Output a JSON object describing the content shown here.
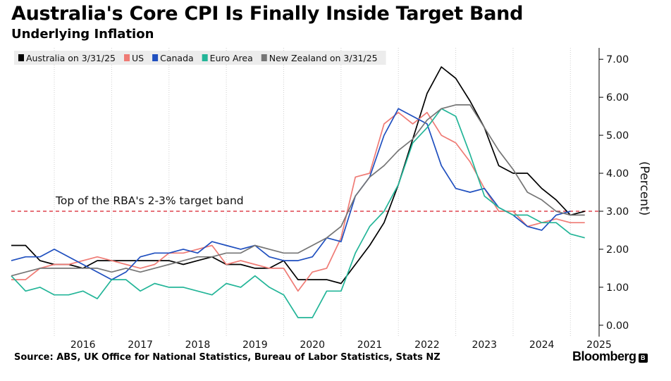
{
  "title": "Australia's Core CPI Is Finally Inside Target Band",
  "subtitle": "Underlying Inflation",
  "source": "Source: ABS, UK Office for National Statistics, Bureau of Labor Statistics, Stats NZ",
  "brand": "Bloomberg",
  "chart_data": {
    "type": "line",
    "ylabel": "(Percent)",
    "ylim": [
      -0.3,
      7.3
    ],
    "xlim": [
      2015.25,
      2025.5
    ],
    "yticks": [
      0,
      1,
      2,
      3,
      4,
      5,
      6,
      7
    ],
    "ytick_labels": [
      "0.00",
      "1.00",
      "2.00",
      "3.00",
      "4.00",
      "5.00",
      "6.00",
      "7.00"
    ],
    "xtick_labels": [
      "2016",
      "2017",
      "2018",
      "2019",
      "2020",
      "2021",
      "2022",
      "2023",
      "2024",
      "2025"
    ],
    "x_start": 2015.25,
    "x_step": 0.25,
    "grid": "vertical",
    "legend": "top-left",
    "reference_line": {
      "y": 3.0,
      "label": "Top of the RBA's 2-3% target band",
      "color": "#e0505a"
    },
    "series": [
      {
        "name": "Australia on 3/31/25",
        "color": "#000000",
        "values": [
          2.1,
          2.1,
          1.7,
          1.6,
          1.6,
          1.5,
          1.7,
          1.7,
          1.7,
          1.7,
          1.7,
          1.7,
          1.6,
          1.7,
          1.8,
          1.6,
          1.6,
          1.5,
          1.5,
          1.7,
          1.2,
          1.2,
          1.2,
          1.1,
          1.6,
          2.1,
          2.7,
          3.7,
          4.9,
          6.1,
          6.8,
          6.5,
          5.9,
          5.2,
          4.2,
          4.0,
          4.0,
          3.6,
          3.3,
          2.9,
          3.0
        ]
      },
      {
        "name": "US",
        "color": "#ef7b75",
        "values": [
          1.2,
          1.2,
          1.5,
          1.6,
          1.6,
          1.7,
          1.8,
          1.7,
          1.6,
          1.5,
          1.6,
          1.9,
          1.9,
          2.0,
          2.1,
          1.6,
          1.7,
          1.6,
          1.5,
          1.5,
          0.9,
          1.4,
          1.5,
          2.3,
          3.9,
          4.0,
          5.3,
          5.6,
          5.3,
          5.6,
          5.0,
          4.8,
          4.3,
          3.6,
          3.0,
          3.0,
          2.6,
          2.7,
          2.8,
          2.7,
          2.7
        ]
      },
      {
        "name": "Canada",
        "color": "#1f4fbf",
        "values": [
          1.7,
          1.8,
          1.8,
          2.0,
          1.8,
          1.6,
          1.4,
          1.2,
          1.4,
          1.8,
          1.9,
          1.9,
          2.0,
          1.9,
          2.2,
          2.1,
          2.0,
          2.1,
          1.8,
          1.7,
          1.7,
          1.8,
          2.3,
          2.2,
          3.4,
          3.9,
          5.0,
          5.7,
          5.5,
          5.3,
          4.2,
          3.6,
          3.5,
          3.6,
          3.1,
          2.9,
          2.6,
          2.5,
          2.9,
          3.0
        ]
      },
      {
        "name": "Euro Area",
        "color": "#23b598",
        "values": [
          1.3,
          0.9,
          1.0,
          0.8,
          0.8,
          0.9,
          0.7,
          1.2,
          1.2,
          0.9,
          1.1,
          1.0,
          1.0,
          0.9,
          0.8,
          1.1,
          1.0,
          1.3,
          1.0,
          0.8,
          0.2,
          0.2,
          0.9,
          0.9,
          1.9,
          2.6,
          3.0,
          3.7,
          4.8,
          5.2,
          5.7,
          5.5,
          4.5,
          3.4,
          3.1,
          2.9,
          2.9,
          2.7,
          2.7,
          2.4,
          2.3
        ]
      },
      {
        "name": "New Zealand on 3/31/25",
        "color": "#757575",
        "values": [
          1.3,
          1.4,
          1.5,
          1.5,
          1.5,
          1.5,
          1.5,
          1.4,
          1.5,
          1.4,
          1.5,
          1.6,
          1.7,
          1.8,
          1.8,
          1.9,
          1.9,
          2.1,
          2.0,
          1.9,
          1.9,
          2.1,
          2.3,
          2.6,
          3.4,
          3.9,
          4.2,
          4.6,
          4.9,
          5.4,
          5.7,
          5.8,
          5.8,
          5.2,
          4.6,
          4.1,
          3.5,
          3.3,
          3.0,
          2.9,
          2.9
        ]
      }
    ]
  }
}
